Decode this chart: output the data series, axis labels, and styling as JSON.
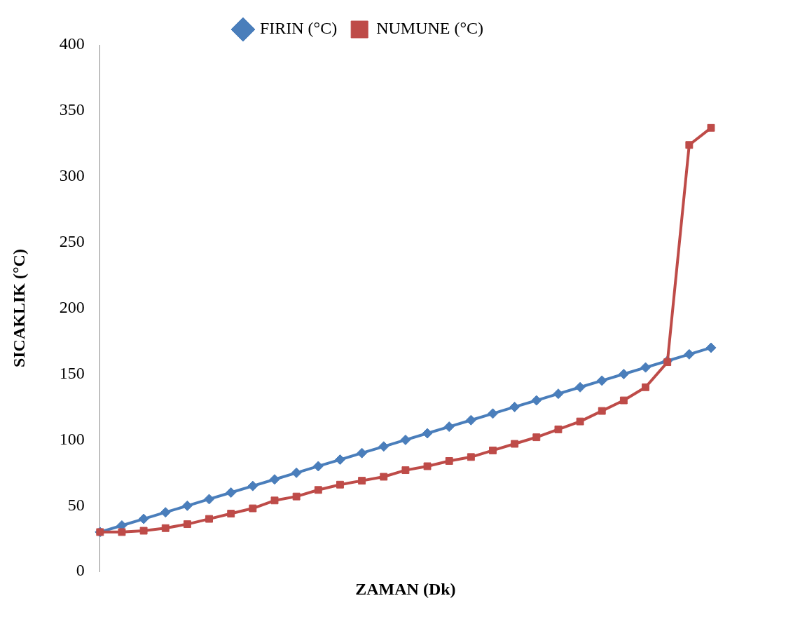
{
  "chart_data": {
    "type": "line",
    "xlabel": "ZAMAN (Dk)",
    "ylabel": "SICAKLIK (°C)",
    "categories": [
      null,
      null,
      null,
      null,
      null,
      null,
      null,
      null,
      null,
      null,
      null,
      null,
      null,
      null,
      null,
      null,
      null,
      null,
      null,
      null,
      null,
      null,
      null,
      null,
      null,
      null,
      null,
      null,
      null
    ],
    "series": [
      {
        "name": "FIRIN (°C)",
        "color": "#4a7ebb",
        "marker": "diamond",
        "values": [
          30,
          35,
          40,
          45,
          50,
          55,
          60,
          65,
          70,
          75,
          80,
          85,
          90,
          95,
          100,
          105,
          110,
          115,
          120,
          125,
          130,
          135,
          140,
          145,
          150,
          155,
          160,
          165,
          170
        ]
      },
      {
        "name": "NUMUNE (°C)",
        "color": "#be4b48",
        "marker": "square",
        "values": [
          30,
          30,
          31,
          33,
          36,
          40,
          44,
          48,
          54,
          57,
          62,
          66,
          69,
          72,
          77,
          80,
          84,
          87,
          92,
          97,
          102,
          108,
          114,
          122,
          130,
          140,
          159,
          324,
          337
        ]
      }
    ],
    "ylim": [
      0,
      400
    ],
    "yticks": [
      0,
      50,
      100,
      150,
      200,
      250,
      300,
      350,
      400
    ],
    "grid": false,
    "legend": "top"
  }
}
